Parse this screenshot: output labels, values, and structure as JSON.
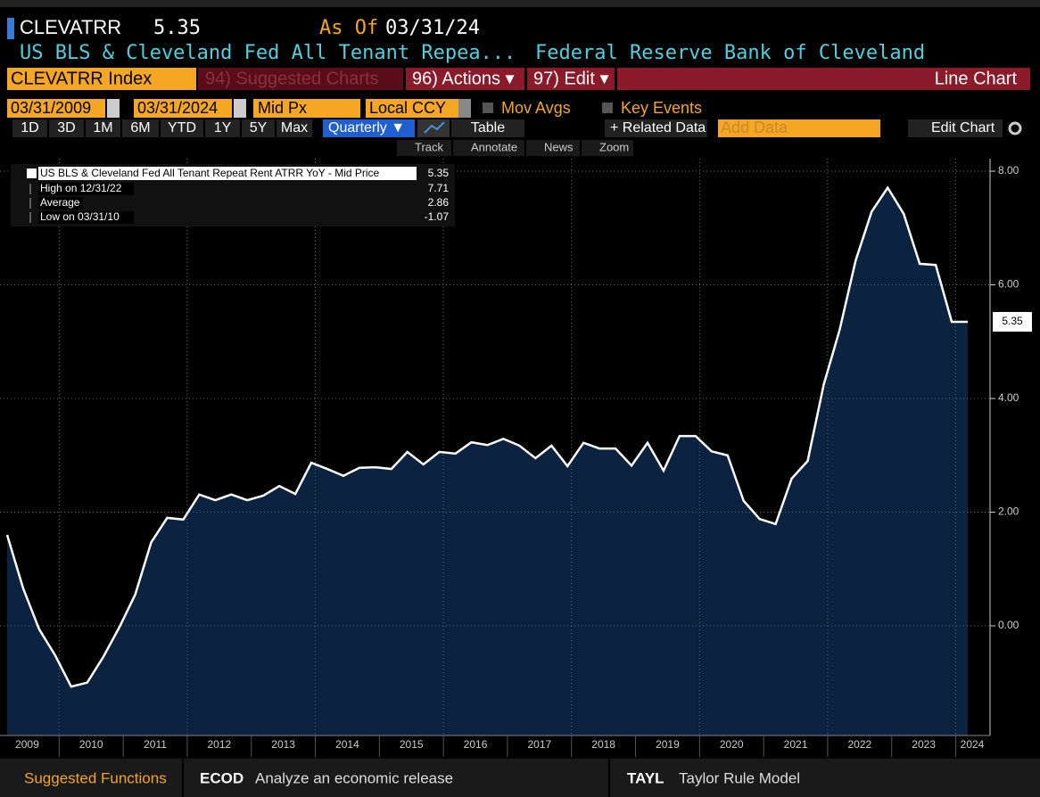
{
  "header": {
    "ticker": "CLEVATRR",
    "price": "5.35",
    "as_of_label": "As Of",
    "as_of": "03/31/24",
    "name": "US BLS & Cleveland Fed All Tenant Repea...",
    "source": "Federal Reserve Bank of Cleveland"
  },
  "toolbar": {
    "security": "CLEVATRR Index",
    "suggested": "94) Suggested Charts",
    "actions": "96) Actions ▾",
    "edit": "97) Edit ▾",
    "chart_type": "Line Chart"
  },
  "controls": {
    "start": "03/31/2009",
    "end": "03/31/2024",
    "field": "Mid Px",
    "currency": "Local CCY",
    "mov_avgs": "Mov Avgs",
    "key_events": "Key Events",
    "ranges": [
      "1D",
      "3D",
      "1M",
      "6M",
      "YTD",
      "1Y",
      "5Y",
      "Max"
    ],
    "period": "Quarterly ▼",
    "table": "Table",
    "related": "+ Related Data",
    "add_data": "Add Data",
    "edit_chart": "Edit Chart",
    "tools": [
      "Track",
      "Annotate",
      "News",
      "Zoom"
    ]
  },
  "chart_data": {
    "type": "line",
    "color": "#ffffff",
    "fill": "#0b2240",
    "values": [
      1.6,
      0.66,
      -0.06,
      -0.52,
      -1.07,
      -1.0,
      -0.55,
      -0.03,
      0.55,
      1.47,
      1.9,
      1.87,
      2.31,
      2.21,
      2.31,
      2.21,
      2.29,
      2.46,
      2.32,
      2.87,
      2.76,
      2.64,
      2.78,
      2.79,
      2.76,
      3.06,
      2.84,
      3.06,
      3.03,
      3.23,
      3.18,
      3.29,
      3.17,
      2.95,
      3.17,
      2.81,
      3.22,
      3.12,
      3.12,
      2.82,
      3.22,
      2.73,
      3.34,
      3.34,
      3.07,
      3.0,
      2.2,
      1.88,
      1.79,
      2.59,
      2.9,
      4.24,
      5.21,
      6.43,
      7.29,
      7.71,
      7.25,
      6.37,
      6.35,
      5.35,
      5.35
    ],
    "years": [
      "2009",
      "2010",
      "2011",
      "2012",
      "2013",
      "2014",
      "2015",
      "2016",
      "2017",
      "2018",
      "2019",
      "2020",
      "2021",
      "2022",
      "2023",
      "2024"
    ],
    "ylim": [
      -1.93,
      8.22
    ],
    "yticks": [
      {
        "value": 0,
        "label": "0.00"
      },
      {
        "value": 2,
        "label": "2.00"
      },
      {
        "value": 4,
        "label": "4.00"
      },
      {
        "value": 6,
        "label": "6.00"
      },
      {
        "value": 8,
        "label": "8.00"
      }
    ],
    "grid": true,
    "last_price": 5.35,
    "legend": {
      "title": "US BLS & Cleveland Fed All Tenant Repeat Rent ATRR YoY - Mid Price",
      "value": 5.35,
      "rows": [
        {
          "label": "High on 12/31/22",
          "value": 7.71
        },
        {
          "label": "Average",
          "value": 2.86
        },
        {
          "label": "Low on 03/31/10",
          "value": -1.07
        }
      ]
    }
  },
  "footer": {
    "title": "Suggested Functions",
    "items": [
      {
        "code": "ECOD",
        "text": "Analyze an economic release"
      },
      {
        "code": "TAYL",
        "text": "Taylor Rule Model"
      }
    ]
  }
}
